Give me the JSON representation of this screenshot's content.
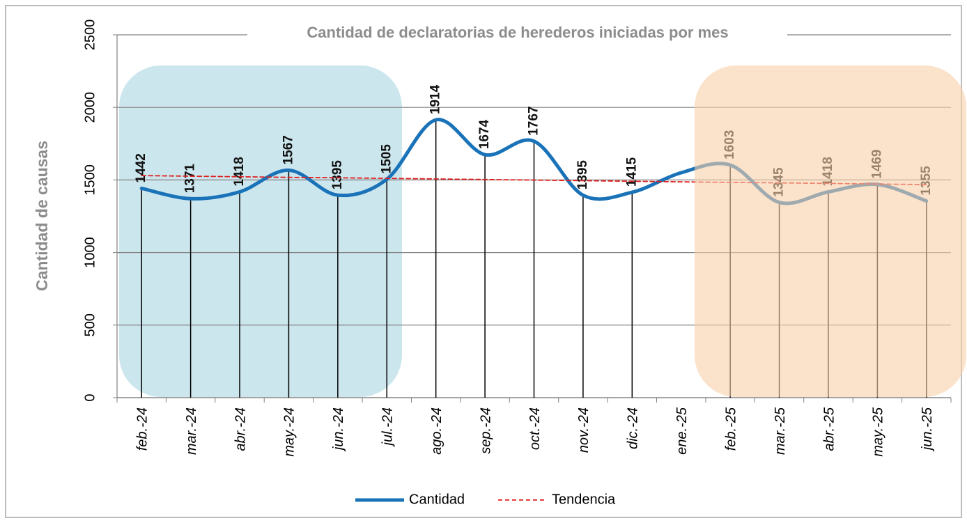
{
  "chart_data": {
    "type": "line",
    "title": "Cantidad de declaratorias de herederos iniciadas por mes",
    "y_label": "Cantidad de causas",
    "categories": [
      "feb.-24",
      "mar.-24",
      "abr.-24",
      "may.-24",
      "jun.-24",
      "jul.-24",
      "ago.-24",
      "sep.-24",
      "oct.-24",
      "nov.-24",
      "dic.-24",
      "ene.-25",
      "feb.-25",
      "mar.-25",
      "abr.-25",
      "may.-25",
      "jun.-25"
    ],
    "series": [
      {
        "name": "Cantidad",
        "color": "#1a73b8",
        "values": [
          1442,
          1371,
          1418,
          1567,
          1395,
          1505,
          1914,
          1674,
          1767,
          1395,
          1415,
          1550,
          1603,
          1345,
          1418,
          1469,
          1355
        ],
        "value_labels": [
          "1442",
          "1371",
          "1418",
          "1567",
          "1395",
          "1505",
          "1914",
          "1674",
          "1767",
          "1395",
          "1415",
          null,
          "1603",
          "1345",
          "1418",
          "1469",
          "1355"
        ]
      },
      {
        "name": "Tendencia",
        "color": "#e02020",
        "dashed": true,
        "values": [
          1530,
          1526,
          1522,
          1518,
          1515,
          1511,
          1507,
          1503,
          1499,
          1495,
          1491,
          1487,
          1483,
          1480,
          1476,
          1472,
          1468
        ]
      }
    ],
    "ylim": [
      0,
      2500
    ],
    "yticks": [
      0,
      500,
      1000,
      1500,
      2000,
      2500
    ],
    "grid": true
  }
}
